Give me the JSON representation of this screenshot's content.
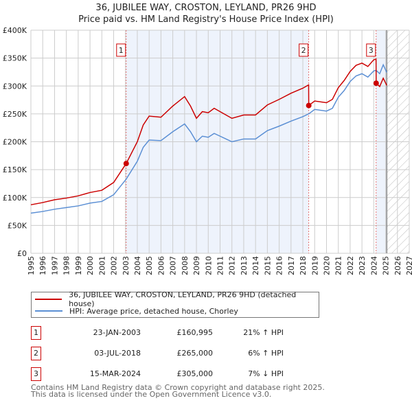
{
  "chart_data": {
    "type": "line",
    "title": "36, JUBILEE WAY, CROSTON, LEYLAND, PR26 9HD",
    "subtitle": "Price paid vs. HM Land Registry's House Price Index (HPI)",
    "xlim": [
      1995,
      2027
    ],
    "ylim": [
      0,
      400000
    ],
    "x_ticks": [
      "1995",
      "1996",
      "1997",
      "1998",
      "1999",
      "2000",
      "2001",
      "2002",
      "2003",
      "2004",
      "2005",
      "2006",
      "2007",
      "2008",
      "2009",
      "2010",
      "2011",
      "2012",
      "2013",
      "2014",
      "2015",
      "2016",
      "2017",
      "2018",
      "2019",
      "2020",
      "2021",
      "2022",
      "2023",
      "2024",
      "2025",
      "2026",
      "2027"
    ],
    "y_ticks": [
      {
        "v": 0,
        "label": "£0"
      },
      {
        "v": 50000,
        "label": "£50K"
      },
      {
        "v": 100000,
        "label": "£100K"
      },
      {
        "v": 150000,
        "label": "£150K"
      },
      {
        "v": 200000,
        "label": "£200K"
      },
      {
        "v": 250000,
        "label": "£250K"
      },
      {
        "v": 300000,
        "label": "£300K"
      },
      {
        "v": 350000,
        "label": "£350K"
      },
      {
        "v": 400000,
        "label": "£400K"
      }
    ],
    "grid": true,
    "forecast_from": 2025.1,
    "x": [
      1995,
      1996,
      1997,
      1998,
      1999,
      2000,
      2001,
      2002,
      2003.06,
      2004,
      2004.5,
      2005,
      2006,
      2007,
      2008,
      2008.5,
      2009,
      2009.5,
      2010,
      2010.5,
      2011,
      2011.5,
      2012,
      2013,
      2014,
      2015,
      2016,
      2017,
      2018,
      2018.49,
      2018.5,
      2019,
      2020,
      2020.5,
      2021,
      2021.5,
      2022,
      2022.5,
      2023,
      2023.5,
      2024,
      2024.19,
      2024.2,
      2024.5,
      2024.8,
      2025.1
    ],
    "series": [
      {
        "name": "36, JUBILEE WAY, CROSTON, LEYLAND, PR26 9HD (detached house)",
        "color": "#cc0000",
        "values_k": [
          87,
          91,
          96,
          99,
          103,
          109,
          113,
          127,
          161,
          200,
          230,
          246,
          244,
          264,
          281,
          264,
          242,
          254,
          252,
          260,
          254,
          248,
          242,
          248,
          248,
          266,
          276,
          287,
          296,
          302,
          265,
          273,
          270,
          276,
          297,
          310,
          326,
          337,
          341,
          335,
          347,
          348,
          305,
          299,
          314,
          301
        ]
      },
      {
        "name": "HPI: Average price, detached house, Chorley",
        "color": "#5b8fd4",
        "values_k": [
          72,
          75,
          79,
          82,
          85,
          90,
          93,
          105,
          133,
          165,
          190,
          203,
          202,
          218,
          232,
          218,
          200,
          210,
          208,
          215,
          210,
          205,
          200,
          205,
          205,
          220,
          228,
          237,
          245,
          250,
          250,
          258,
          255,
          260,
          280,
          292,
          308,
          318,
          322,
          316,
          327,
          328,
          328,
          322,
          338,
          324
        ]
      }
    ],
    "sales": [
      {
        "n": "1",
        "x": 2003.06,
        "price": 160995,
        "date": "23-JAN-2003",
        "price_label": "£160,995",
        "hpi": "21% ↑ HPI"
      },
      {
        "n": "2",
        "x": 2018.5,
        "price": 265000,
        "date": "03-JUL-2018",
        "price_label": "£265,000",
        "hpi": "6% ↑ HPI"
      },
      {
        "n": "3",
        "x": 2024.2,
        "price": 305000,
        "date": "15-MAR-2024",
        "price_label": "£305,000",
        "hpi": "7% ↓ HPI"
      }
    ]
  },
  "footer": {
    "line1": "Contains HM Land Registry data © Crown copyright and database right 2025.",
    "line2": "This data is licensed under the Open Government Licence v3.0."
  }
}
